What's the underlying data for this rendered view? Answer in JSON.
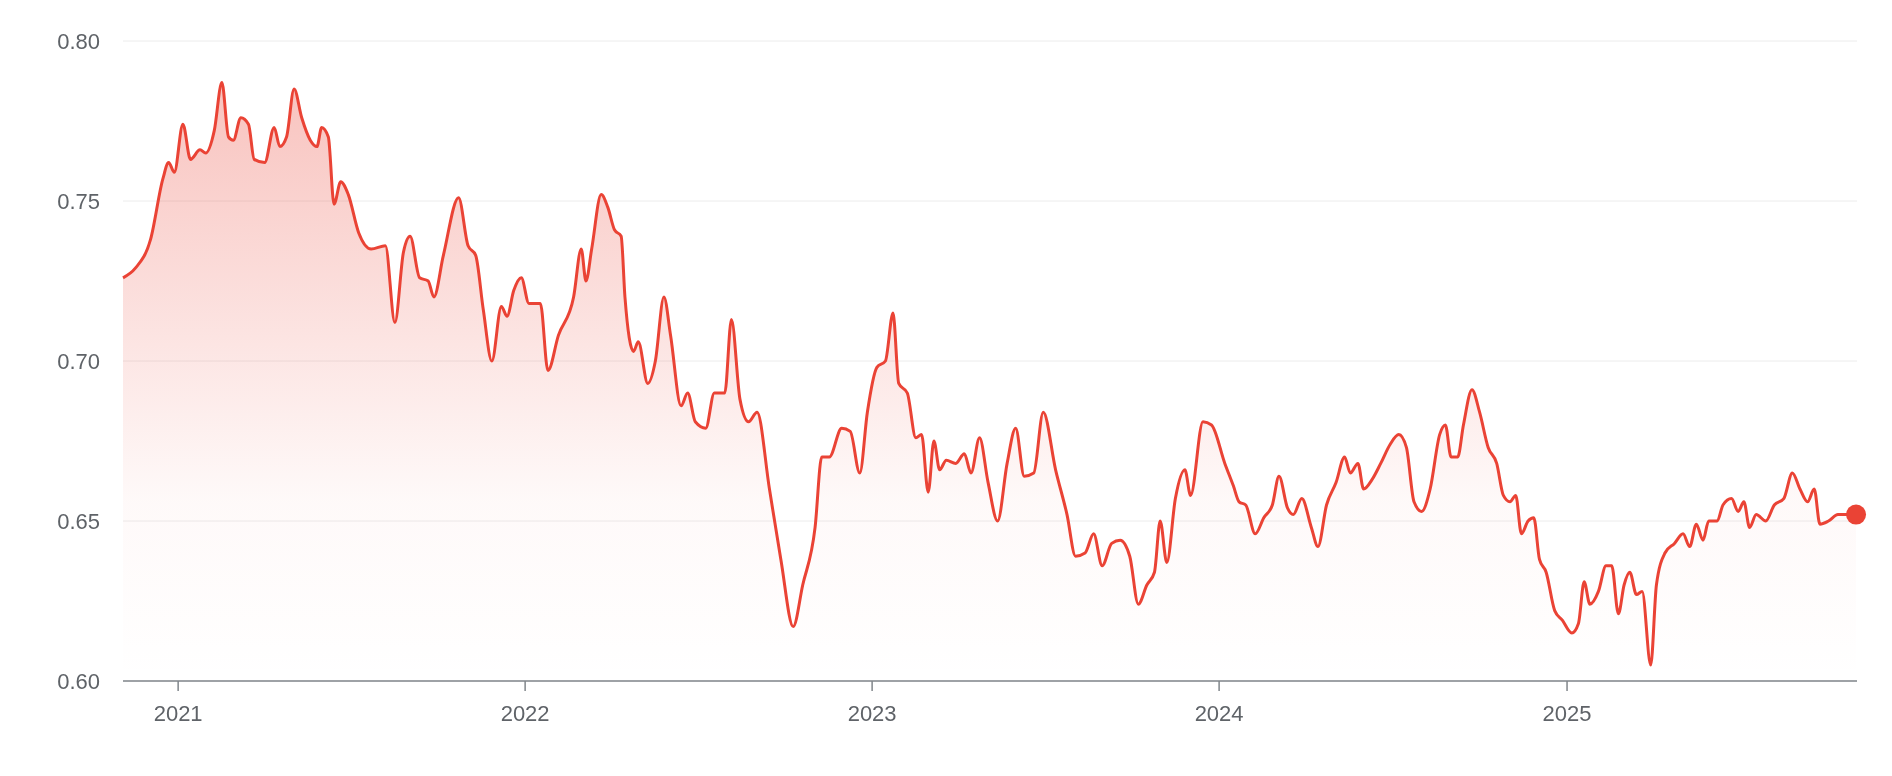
{
  "chart_data": {
    "type": "area",
    "x": [
      "2020-11-04",
      "2020-11-17",
      "2020-12-03",
      "2020-12-16",
      "2020-12-22",
      "2020-12-28",
      "2021-01-06",
      "2021-01-14",
      "2021-01-24",
      "2021-01-30",
      "2021-02-08",
      "2021-02-16",
      "2021-02-23",
      "2021-02-28",
      "2021-03-08",
      "2021-03-16",
      "2021-03-22",
      "2021-04-02",
      "2021-04-12",
      "2021-04-18",
      "2021-04-25",
      "2021-05-03",
      "2021-05-11",
      "2021-05-20",
      "2021-05-27",
      "2021-06-01",
      "2021-06-08",
      "2021-06-14",
      "2021-06-21",
      "2021-06-29",
      "2021-07-10",
      "2021-07-23",
      "2021-08-07",
      "2021-08-17",
      "2021-08-26",
      "2021-09-02",
      "2021-09-12",
      "2021-09-21",
      "2021-09-27",
      "2021-10-07",
      "2021-10-23",
      "2021-11-02",
      "2021-11-10",
      "2021-11-18",
      "2021-11-27",
      "2021-12-07",
      "2021-12-13",
      "2021-12-20",
      "2021-12-28",
      "2022-01-05",
      "2022-01-17",
      "2022-01-25",
      "2022-02-05",
      "2022-02-21",
      "2022-03-01",
      "2022-03-06",
      "2022-03-12",
      "2022-03-22",
      "2022-03-29",
      "2022-04-05",
      "2022-04-12",
      "2022-04-16",
      "2022-04-25",
      "2022-04-30",
      "2022-05-10",
      "2022-05-18",
      "2022-05-27",
      "2022-06-03",
      "2022-06-14",
      "2022-06-21",
      "2022-06-29",
      "2022-07-10",
      "2022-07-19",
      "2022-07-30",
      "2022-08-06",
      "2022-08-15",
      "2022-08-24",
      "2022-09-02",
      "2022-09-15",
      "2022-09-27",
      "2022-10-10",
      "2022-10-20",
      "2022-11-02",
      "2022-11-09",
      "2022-11-17",
      "2022-11-30",
      "2022-12-09",
      "2022-12-19",
      "2022-12-27",
      "2023-01-06",
      "2023-01-15",
      "2023-01-23",
      "2023-01-29",
      "2023-02-07",
      "2023-02-16",
      "2023-02-22",
      "2023-03-01",
      "2023-03-07",
      "2023-03-13",
      "2023-03-20",
      "2023-03-30",
      "2023-04-08",
      "2023-04-15",
      "2023-04-24",
      "2023-05-03",
      "2023-05-13",
      "2023-05-23",
      "2023-06-01",
      "2023-06-10",
      "2023-06-20",
      "2023-06-30",
      "2023-07-13",
      "2023-07-25",
      "2023-08-03",
      "2023-08-13",
      "2023-08-22",
      "2023-08-31",
      "2023-09-10",
      "2023-09-19",
      "2023-09-29",
      "2023-10-08",
      "2023-10-17",
      "2023-10-25",
      "2023-10-31",
      "2023-11-07",
      "2023-11-16",
      "2023-11-26",
      "2023-12-02",
      "2023-12-15",
      "2023-12-24",
      "2024-01-07",
      "2024-01-16",
      "2024-01-22",
      "2024-01-29",
      "2024-02-08",
      "2024-02-17",
      "2024-02-26",
      "2024-03-04",
      "2024-03-13",
      "2024-03-19",
      "2024-03-28",
      "2024-04-07",
      "2024-04-14",
      "2024-04-23",
      "2024-05-03",
      "2024-05-12",
      "2024-05-18",
      "2024-05-26",
      "2024-06-01",
      "2024-06-10",
      "2024-06-19",
      "2024-06-29",
      "2024-07-08",
      "2024-07-16",
      "2024-07-24",
      "2024-08-01",
      "2024-08-10",
      "2024-08-20",
      "2024-08-26",
      "2024-09-01",
      "2024-09-08",
      "2024-09-14",
      "2024-09-23",
      "2024-10-01",
      "2024-10-10",
      "2024-10-19",
      "2024-10-26",
      "2024-11-02",
      "2024-11-08",
      "2024-11-14",
      "2024-11-21",
      "2024-11-27",
      "2024-12-03",
      "2024-12-10",
      "2024-12-19",
      "2024-12-27",
      "2025-01-06",
      "2025-01-13",
      "2025-01-19",
      "2025-01-25",
      "2025-02-03",
      "2025-02-11",
      "2025-02-17",
      "2025-02-24",
      "2025-03-02",
      "2025-03-08",
      "2025-03-15",
      "2025-03-21",
      "2025-03-30",
      "2025-04-05",
      "2025-04-14",
      "2025-04-24",
      "2025-05-03",
      "2025-05-10",
      "2025-05-17",
      "2025-05-24",
      "2025-05-30",
      "2025-06-08",
      "2025-06-14",
      "2025-06-23",
      "2025-06-30",
      "2025-07-06",
      "2025-07-12",
      "2025-07-19",
      "2025-07-29",
      "2025-08-07",
      "2025-08-17",
      "2025-08-26",
      "2025-09-03",
      "2025-09-11",
      "2025-09-18",
      "2025-09-24",
      "2025-10-03",
      "2025-10-13",
      "2025-11-01"
    ],
    "series": [
      {
        "color": "#ea4335",
        "values": [
          0.726,
          0.729,
          0.738,
          0.757,
          0.762,
          0.759,
          0.774,
          0.763,
          0.766,
          0.765,
          0.772,
          0.787,
          0.77,
          0.769,
          0.776,
          0.774,
          0.763,
          0.762,
          0.773,
          0.767,
          0.77,
          0.785,
          0.776,
          0.769,
          0.767,
          0.773,
          0.77,
          0.749,
          0.756,
          0.752,
          0.74,
          0.735,
          0.736,
          0.712,
          0.734,
          0.739,
          0.726,
          0.725,
          0.72,
          0.733,
          0.751,
          0.736,
          0.733,
          0.716,
          0.7,
          0.717,
          0.714,
          0.722,
          0.726,
          0.718,
          0.718,
          0.697,
          0.708,
          0.72,
          0.735,
          0.725,
          0.735,
          0.752,
          0.748,
          0.741,
          0.739,
          0.72,
          0.703,
          0.706,
          0.693,
          0.7,
          0.72,
          0.708,
          0.686,
          0.69,
          0.681,
          0.679,
          0.69,
          0.69,
          0.713,
          0.688,
          0.681,
          0.684,
          0.66,
          0.638,
          0.617,
          0.63,
          0.648,
          0.67,
          0.67,
          0.679,
          0.678,
          0.665,
          0.684,
          0.698,
          0.7,
          0.715,
          0.693,
          0.69,
          0.676,
          0.677,
          0.659,
          0.675,
          0.666,
          0.669,
          0.668,
          0.671,
          0.665,
          0.676,
          0.662,
          0.65,
          0.668,
          0.679,
          0.664,
          0.665,
          0.684,
          0.666,
          0.652,
          0.639,
          0.64,
          0.646,
          0.636,
          0.643,
          0.644,
          0.639,
          0.624,
          0.63,
          0.634,
          0.65,
          0.637,
          0.657,
          0.666,
          0.658,
          0.681,
          0.68,
          0.668,
          0.661,
          0.656,
          0.655,
          0.646,
          0.651,
          0.655,
          0.664,
          0.654,
          0.652,
          0.657,
          0.648,
          0.642,
          0.655,
          0.662,
          0.67,
          0.665,
          0.668,
          0.66,
          0.663,
          0.668,
          0.674,
          0.677,
          0.673,
          0.656,
          0.653,
          0.66,
          0.677,
          0.68,
          0.67,
          0.67,
          0.68,
          0.691,
          0.684,
          0.673,
          0.668,
          0.658,
          0.656,
          0.658,
          0.646,
          0.65,
          0.651,
          0.638,
          0.634,
          0.622,
          0.619,
          0.615,
          0.618,
          0.631,
          0.624,
          0.628,
          0.636,
          0.636,
          0.621,
          0.63,
          0.634,
          0.627,
          0.628,
          0.605,
          0.63,
          0.64,
          0.643,
          0.646,
          0.642,
          0.649,
          0.644,
          0.65,
          0.65,
          0.655,
          0.657,
          0.653,
          0.656,
          0.648,
          0.652,
          0.65,
          0.655,
          0.657,
          0.665,
          0.66,
          0.656,
          0.66,
          0.649,
          0.65,
          0.652,
          0.652
        ]
      }
    ],
    "xlim": [
      "2020-11-04",
      "2025-11-02"
    ],
    "xticks": [
      {
        "value": "2021-01-01",
        "label": "2021"
      },
      {
        "value": "2022-01-01",
        "label": "2022"
      },
      {
        "value": "2023-01-01",
        "label": "2023"
      },
      {
        "value": "2024-01-01",
        "label": "2024"
      },
      {
        "value": "2025-01-01",
        "label": "2025"
      }
    ],
    "ylim": [
      0.6,
      0.8
    ],
    "yticks": [
      {
        "value": 0.6,
        "label": "0.60"
      },
      {
        "value": 0.65,
        "label": "0.65"
      },
      {
        "value": 0.7,
        "label": "0.70"
      },
      {
        "value": 0.75,
        "label": "0.75"
      },
      {
        "value": 0.8,
        "label": "0.80"
      }
    ],
    "grid": "y"
  }
}
